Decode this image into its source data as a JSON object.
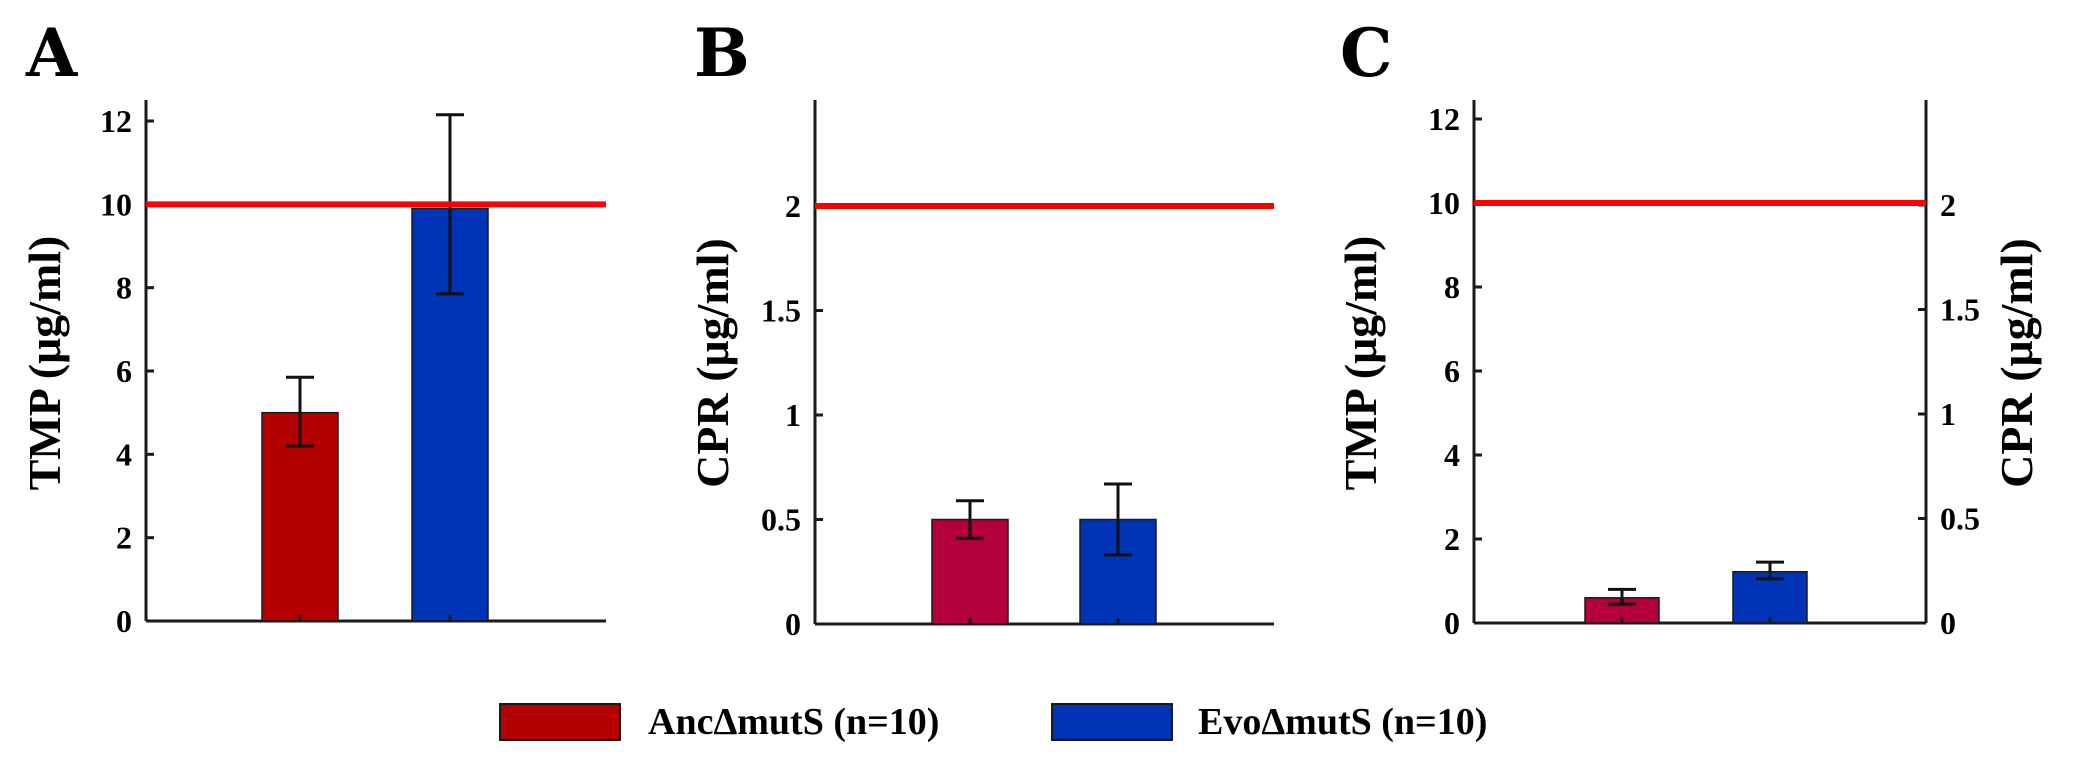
{
  "colors": {
    "anc_a": "#b50000",
    "anc_bc": "#b3003a",
    "evo": "#0033b5",
    "threshold": "#ff0000",
    "axis": "#1a1a1a"
  },
  "legend": [
    {
      "label": "AncΔmutS (n=10)",
      "color": "#b50000"
    },
    {
      "label": "EvoΔmutS (n=10)",
      "color": "#0033b5"
    }
  ],
  "chart_data": [
    {
      "panel": "A",
      "type": "bar",
      "ylabel": "TMP (μg/ml)",
      "ylim": [
        0,
        12.5
      ],
      "yticks": [
        "0",
        "2",
        "4",
        "6",
        "8",
        "10",
        "12"
      ],
      "threshold": 10,
      "series": [
        {
          "name": "AncΔmutS (n=10)",
          "value": 5.0,
          "error": [
            4.2,
            5.85
          ],
          "color": "#b50000"
        },
        {
          "name": "EvoΔmutS (n=10)",
          "value": 9.9,
          "error": [
            7.85,
            12.15
          ],
          "color": "#0033b5"
        }
      ]
    },
    {
      "panel": "B",
      "type": "bar",
      "ylabel": "CPR (μg/ml)",
      "ylim": [
        0,
        2.5
      ],
      "yticks": [
        "0",
        "0.5",
        "1",
        "1.5",
        "2"
      ],
      "threshold": 2,
      "series": [
        {
          "name": "AncΔmutS (n=10)",
          "value": 0.5,
          "error": [
            0.41,
            0.59
          ],
          "color": "#b3003a"
        },
        {
          "name": "EvoΔmutS (n=10)",
          "value": 0.5,
          "error": [
            0.33,
            0.67
          ],
          "color": "#0033b5"
        }
      ]
    },
    {
      "panel": "C",
      "type": "bar",
      "ylabel": "TMP (μg/ml)",
      "ylabel_right": "CPR (μg/ml)",
      "ylim": [
        0,
        12.5
      ],
      "ylim_right": [
        0,
        2.5
      ],
      "yticks": [
        "0",
        "2",
        "4",
        "6",
        "8",
        "10",
        "12"
      ],
      "yticks_right": [
        "0",
        "0.5",
        "1",
        "1.5",
        "2"
      ],
      "threshold": 10,
      "series": [
        {
          "name": "AncΔmutS (n=10)",
          "value": 0.6,
          "error": [
            0.45,
            0.8
          ],
          "color": "#b3003a"
        },
        {
          "name": "EvoΔmutS (n=10)",
          "value": 1.22,
          "error": [
            1.05,
            1.45
          ],
          "color": "#0033b5"
        }
      ]
    }
  ]
}
